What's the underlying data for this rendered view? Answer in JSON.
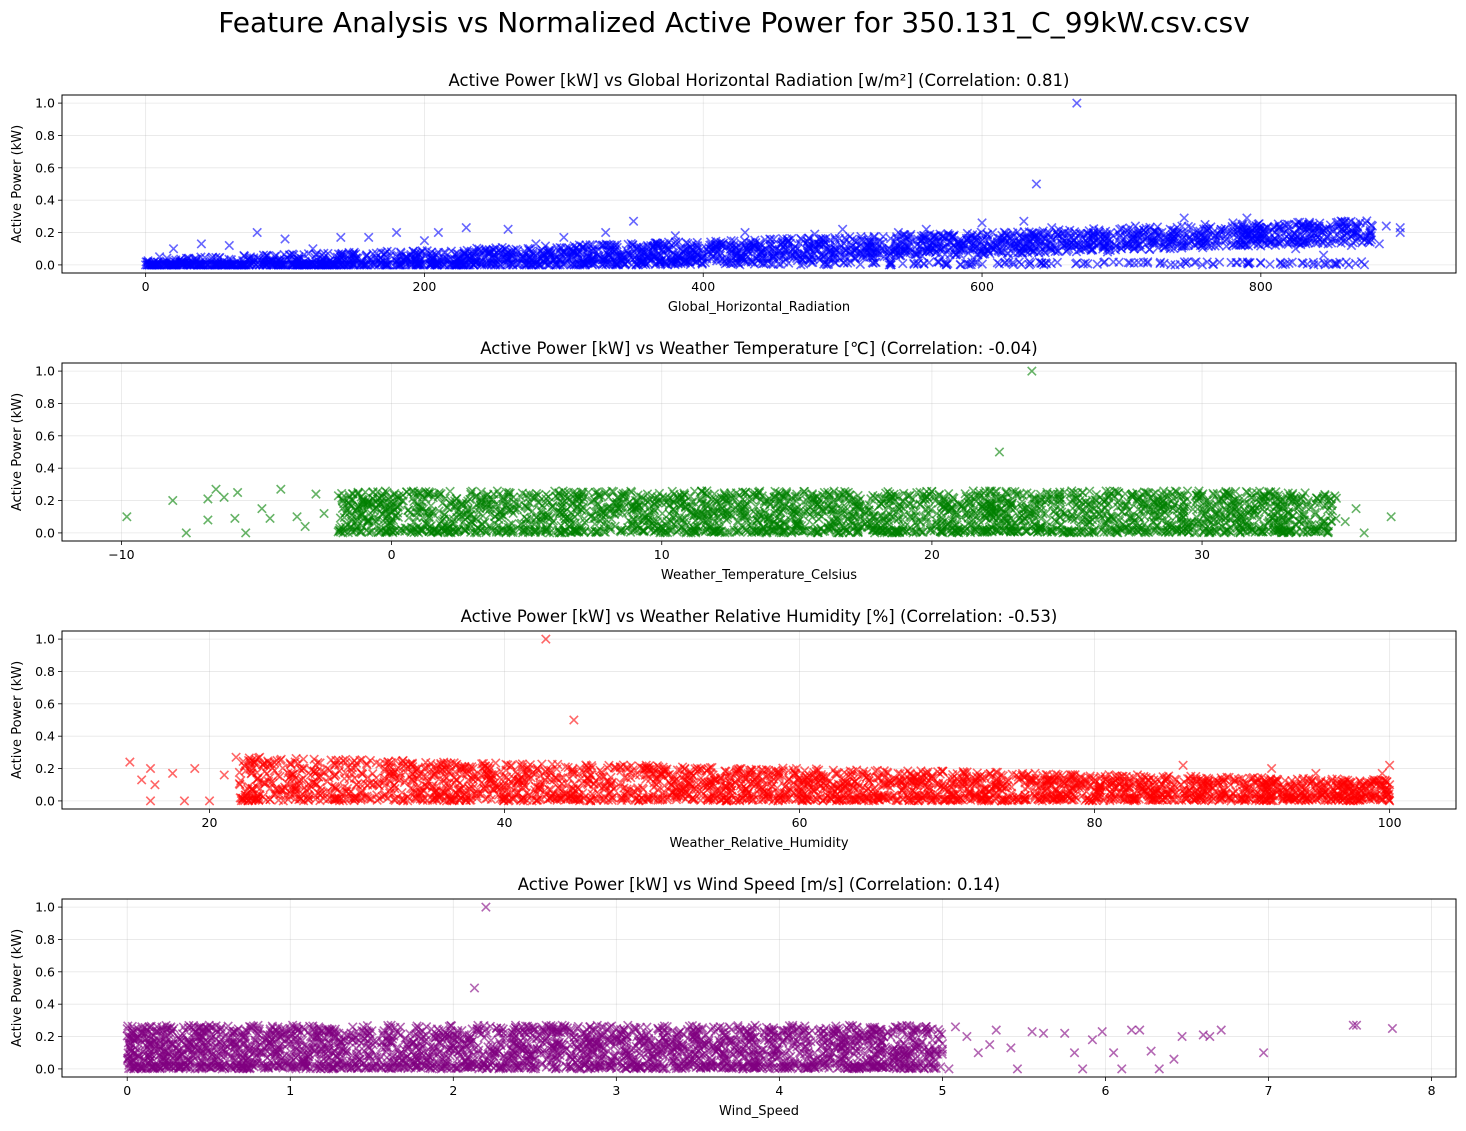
{
  "figure": {
    "suptitle": "Feature Analysis vs Normalized Active Power for 350.131_C_99kW.csv.csv"
  },
  "chart_data": [
    {
      "type": "scatter",
      "title": "Active Power [kW] vs Global Horizontal Radiation [w/m²] (Correlation: 0.81)",
      "xlabel": "Global_Horizontal_Radiation",
      "ylabel": "Active Power (kW)",
      "color": "#0000ff",
      "marker": "x",
      "grid": true,
      "xlim": [
        -60,
        940
      ],
      "ylim": [
        -0.05,
        1.05
      ],
      "xticks": [
        0,
        200,
        400,
        600,
        800
      ],
      "yticks": [
        0.0,
        0.2,
        0.4,
        0.6,
        0.8,
        1.0
      ],
      "xtick_labels": [
        "0",
        "200",
        "400",
        "600",
        "800"
      ],
      "ytick_labels": [
        "0.0",
        "0.2",
        "0.4",
        "0.6",
        "0.8",
        "1.0"
      ],
      "correlation": 0.81,
      "points": [
        [
          668,
          1.0
        ],
        [
          639,
          0.5
        ],
        [
          900,
          0.2
        ],
        [
          900,
          0.23
        ],
        [
          890,
          0.24
        ],
        [
          880,
          0.24
        ],
        [
          860,
          0.22
        ],
        [
          840,
          0.24
        ],
        [
          820,
          0.25
        ],
        [
          800,
          0.22
        ],
        [
          790,
          0.29
        ],
        [
          780,
          0.26
        ],
        [
          770,
          0.19
        ],
        [
          760,
          0.25
        ],
        [
          750,
          0.23
        ],
        [
          745,
          0.29
        ],
        [
          720,
          0.22
        ],
        [
          710,
          0.24
        ],
        [
          700,
          0.1
        ],
        [
          690,
          0.08
        ],
        [
          680,
          0.2
        ],
        [
          650,
          0.23
        ],
        [
          630,
          0.27
        ],
        [
          600,
          0.26
        ],
        [
          580,
          0.12
        ],
        [
          560,
          0.22
        ],
        [
          540,
          0.2
        ],
        [
          520,
          0.07
        ],
        [
          500,
          0.22
        ],
        [
          480,
          0.19
        ],
        [
          460,
          0.16
        ],
        [
          450,
          0.05
        ],
        [
          430,
          0.2
        ],
        [
          420,
          0.15
        ],
        [
          400,
          0.07
        ],
        [
          380,
          0.18
        ],
        [
          360,
          0.12
        ],
        [
          350,
          0.27
        ],
        [
          330,
          0.2
        ],
        [
          310,
          0.09
        ],
        [
          300,
          0.17
        ],
        [
          280,
          0.13
        ],
        [
          260,
          0.22
        ],
        [
          250,
          0.09
        ],
        [
          230,
          0.23
        ],
        [
          210,
          0.2
        ],
        [
          200,
          0.15
        ],
        [
          180,
          0.2
        ],
        [
          160,
          0.17
        ],
        [
          140,
          0.17
        ],
        [
          120,
          0.1
        ],
        [
          100,
          0.16
        ],
        [
          80,
          0.2
        ],
        [
          60,
          0.12
        ],
        [
          40,
          0.13
        ],
        [
          20,
          0.1
        ],
        [
          10,
          0.05
        ],
        [
          0,
          0.0
        ],
        [
          845,
          0.06
        ],
        [
          865,
          0.12
        ],
        [
          885,
          0.13
        ],
        [
          825,
          0.1
        ],
        [
          770,
          0.18
        ],
        [
          735,
          0.1
        ],
        [
          595,
          0.1
        ],
        [
          470,
          0.0
        ],
        [
          380,
          0.02
        ],
        [
          290,
          0.02
        ]
      ],
      "trend": {
        "slope": 0.00027,
        "intercept": 0.0,
        "spread": 0.1,
        "count": 2600
      }
    },
    {
      "type": "scatter",
      "title": "Active Power [kW] vs Weather Temperature [℃] (Correlation: -0.04)",
      "xlabel": "Weather_Temperature_Celsius",
      "ylabel": "Active Power (kW)",
      "color": "#008000",
      "marker": "x",
      "grid": true,
      "xlim": [
        -12.2,
        39.4
      ],
      "ylim": [
        -0.05,
        1.05
      ],
      "xticks": [
        -10,
        0,
        10,
        20,
        30
      ],
      "yticks": [
        0.0,
        0.2,
        0.4,
        0.6,
        0.8,
        1.0
      ],
      "xtick_labels": [
        "−10",
        "0",
        "10",
        "20",
        "30"
      ],
      "ytick_labels": [
        "0.0",
        "0.2",
        "0.4",
        "0.6",
        "0.8",
        "1.0"
      ],
      "correlation": -0.04,
      "points": [
        [
          23.7,
          1.0
        ],
        [
          22.5,
          0.5
        ],
        [
          -9.8,
          0.1
        ],
        [
          -8.1,
          0.2
        ],
        [
          -7.6,
          0.0
        ],
        [
          -6.8,
          0.21
        ],
        [
          -6.5,
          0.27
        ],
        [
          -6.2,
          0.22
        ],
        [
          -6.8,
          0.08
        ],
        [
          -5.8,
          0.09
        ],
        [
          -5.4,
          0.0
        ],
        [
          -5.7,
          0.25
        ],
        [
          -4.8,
          0.15
        ],
        [
          -4.5,
          0.09
        ],
        [
          -4.1,
          0.27
        ],
        [
          -3.5,
          0.1
        ],
        [
          -3.2,
          0.04
        ],
        [
          -2.8,
          0.24
        ],
        [
          -2.5,
          0.12
        ],
        [
          -1.8,
          0.0
        ],
        [
          37.0,
          0.1
        ],
        [
          36.0,
          0.0
        ],
        [
          35.7,
          0.15
        ],
        [
          35.3,
          0.07
        ],
        [
          34.8,
          0.18
        ],
        [
          33.5,
          0.05
        ]
      ],
      "trend": {
        "xmin": -2,
        "xmax": 35,
        "ymax": 0.26,
        "count": 2600
      }
    },
    {
      "type": "scatter",
      "title": "Active Power [kW] vs Weather Relative Humidity [%] (Correlation: -0.53)",
      "xlabel": "Weather_Relative_Humidity",
      "ylabel": "Active Power (kW)",
      "color": "#ff0000",
      "marker": "x",
      "grid": true,
      "xlim": [
        10,
        104.5
      ],
      "ylim": [
        -0.05,
        1.05
      ],
      "xticks": [
        20,
        40,
        60,
        80,
        100
      ],
      "yticks": [
        0.0,
        0.2,
        0.4,
        0.6,
        0.8,
        1.0
      ],
      "xtick_labels": [
        "20",
        "40",
        "60",
        "80",
        "100"
      ],
      "ytick_labels": [
        "0.0",
        "0.2",
        "0.4",
        "0.6",
        "0.8",
        "1.0"
      ],
      "correlation": -0.53,
      "points": [
        [
          42.8,
          1.0
        ],
        [
          44.7,
          0.5
        ],
        [
          14.6,
          0.24
        ],
        [
          15.4,
          0.13
        ],
        [
          16.0,
          0.2
        ],
        [
          16.0,
          0.0
        ],
        [
          16.3,
          0.1
        ],
        [
          17.5,
          0.17
        ],
        [
          18.3,
          0.0
        ],
        [
          19.0,
          0.2
        ],
        [
          20.0,
          0.0
        ],
        [
          21.0,
          0.16
        ],
        [
          21.8,
          0.27
        ],
        [
          22.6,
          0.0
        ],
        [
          23.4,
          0.27
        ],
        [
          24.0,
          0.12
        ],
        [
          25.0,
          0.0
        ],
        [
          26.0,
          0.23
        ],
        [
          100.0,
          0.22
        ],
        [
          100.0,
          0.0
        ],
        [
          100.0,
          0.1
        ],
        [
          99.5,
          0.17
        ],
        [
          97.0,
          0.13
        ],
        [
          95.0,
          0.17
        ],
        [
          92.0,
          0.2
        ],
        [
          90.0,
          0.14
        ],
        [
          88.0,
          0.08
        ],
        [
          86.0,
          0.22
        ]
      ],
      "trend": {
        "xmin": 22,
        "xmax": 100,
        "ytop_at_xmin": 0.27,
        "ytop_at_xmax": 0.13,
        "count": 2600
      }
    },
    {
      "type": "scatter",
      "title": "Active Power [kW] vs Wind Speed [m/s] (Correlation: 0.14)",
      "xlabel": "Wind_Speed",
      "ylabel": "Active Power (kW)",
      "color": "#800080",
      "marker": "x",
      "grid": true,
      "xlim": [
        -0.4,
        8.15
      ],
      "ylim": [
        -0.05,
        1.05
      ],
      "xticks": [
        0,
        1,
        2,
        3,
        4,
        5,
        6,
        7,
        8
      ],
      "yticks": [
        0.0,
        0.2,
        0.4,
        0.6,
        0.8,
        1.0
      ],
      "xtick_labels": [
        "0",
        "1",
        "2",
        "3",
        "4",
        "5",
        "6",
        "7",
        "8"
      ],
      "ytick_labels": [
        "0.0",
        "0.2",
        "0.4",
        "0.6",
        "0.8",
        "1.0"
      ],
      "correlation": 0.14,
      "points": [
        [
          2.2,
          1.0
        ],
        [
          2.13,
          0.5
        ],
        [
          7.76,
          0.25
        ],
        [
          7.52,
          0.27
        ],
        [
          7.54,
          0.27
        ],
        [
          6.97,
          0.1
        ],
        [
          6.71,
          0.24
        ],
        [
          6.64,
          0.2
        ],
        [
          6.6,
          0.21
        ],
        [
          6.47,
          0.2
        ],
        [
          6.42,
          0.06
        ],
        [
          6.33,
          0.0
        ],
        [
          6.28,
          0.11
        ],
        [
          6.21,
          0.24
        ],
        [
          6.16,
          0.24
        ],
        [
          6.1,
          0.0
        ],
        [
          6.05,
          0.1
        ],
        [
          5.98,
          0.23
        ],
        [
          5.92,
          0.18
        ],
        [
          5.86,
          0.0
        ],
        [
          5.81,
          0.1
        ],
        [
          5.75,
          0.22
        ],
        [
          5.62,
          0.22
        ],
        [
          5.55,
          0.23
        ],
        [
          5.46,
          0.0
        ],
        [
          5.42,
          0.13
        ],
        [
          5.33,
          0.24
        ],
        [
          5.29,
          0.15
        ],
        [
          5.22,
          0.1
        ],
        [
          5.15,
          0.2
        ],
        [
          5.08,
          0.26
        ],
        [
          5.04,
          0.0
        ],
        [
          4.98,
          0.18
        ],
        [
          4.95,
          0.11
        ]
      ],
      "trend": {
        "xmin": 0,
        "xmax": 5,
        "ymax": 0.27,
        "count": 2600
      }
    }
  ]
}
